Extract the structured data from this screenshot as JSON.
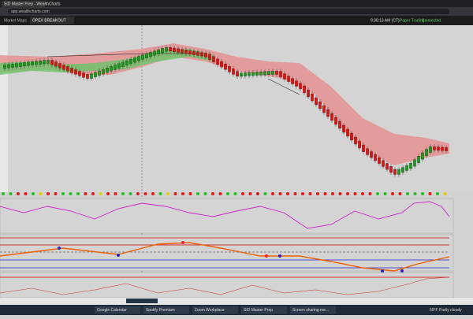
{
  "browser": {
    "tab": "SID Master Prep - WealthCharts",
    "url": "app.wealthcharts.com"
  },
  "toolbar": {
    "tab_left": "Market Maps",
    "tab_active": "OPEX BREAKOUT",
    "time": "9:38:13 AM (CT)",
    "mode": "Paper Trading",
    "status": "Connected"
  },
  "taskbar": {
    "items": [
      "Google Calendar",
      "Spotify Premium",
      "Zoom Workplace",
      "SID Master Prep",
      "Screen sharing me..."
    ],
    "weather": "59°F Partly cloudy"
  }
}
